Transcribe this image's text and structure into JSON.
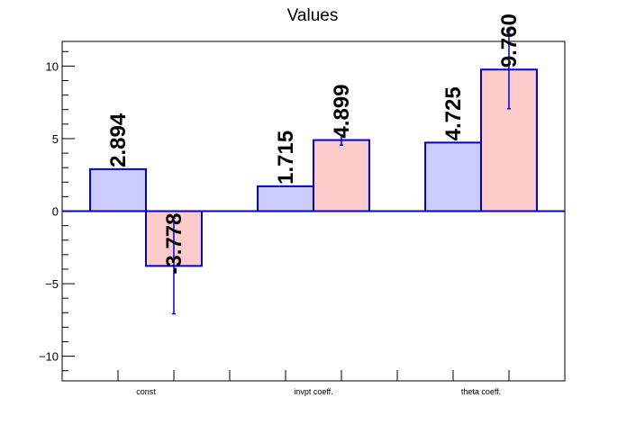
{
  "chart_data": {
    "type": "bar",
    "title": "Values",
    "categories": [
      "const",
      "invpt coeff.",
      "theta coeff."
    ],
    "series": [
      {
        "values": [
          2.894,
          1.715,
          4.725
        ],
        "errors": [
          0,
          0,
          0
        ],
        "color": "#ccccff",
        "edge": "#0000cc"
      },
      {
        "values": [
          -3.778,
          4.899,
          9.76
        ],
        "errors": [
          3.3,
          0.35,
          2.7
        ],
        "color": "#ffcccc",
        "edge": "#0000cc"
      }
    ],
    "data_labels": [
      [
        "2.894",
        "1.715",
        "4.725"
      ],
      [
        "-3.778",
        "4.899",
        "9.760"
      ]
    ],
    "ylim": [
      -11.7,
      11.7
    ],
    "yticks": [
      -10,
      -5,
      0,
      5,
      10
    ],
    "ytick_labels": [
      "−10",
      "−5",
      "0",
      "5",
      "10"
    ],
    "grid": false,
    "legend": "none"
  }
}
